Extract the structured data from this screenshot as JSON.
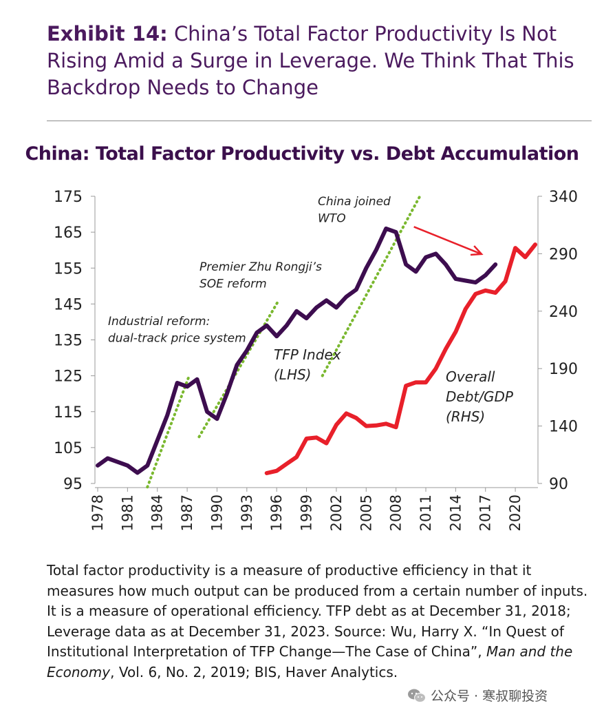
{
  "header": {
    "exhibit_label": "Exhibit 14:",
    "exhibit_title": "China’s Total Factor Productivity Is Not Rising Amid a Surge in Leverage. We Think That This Backdrop Needs to Change"
  },
  "chart_data": {
    "type": "line",
    "title": "China: Total Factor Productivity vs. Debt Accumulation",
    "x_ticks": [
      "1978",
      "1981",
      "1984",
      "1987",
      "1990",
      "1993",
      "1996",
      "1999",
      "2002",
      "2005",
      "2008",
      "2011",
      "2014",
      "2017",
      "2020"
    ],
    "y_left": {
      "min": 95,
      "max": 175,
      "ticks": [
        95,
        105,
        115,
        125,
        135,
        145,
        155,
        165,
        175
      ]
    },
    "y_right": {
      "min": 90,
      "max": 340,
      "ticks": [
        90,
        140,
        190,
        240,
        290,
        340
      ]
    },
    "series": [
      {
        "name": "TFP Index (LHS)",
        "axis": "left",
        "color": "#3d0d4f",
        "x": [
          1978,
          1979,
          1980,
          1981,
          1982,
          1983,
          1984,
          1985,
          1986,
          1987,
          1988,
          1989,
          1990,
          1991,
          1992,
          1993,
          1994,
          1995,
          1996,
          1997,
          1998,
          1999,
          2000,
          2001,
          2002,
          2003,
          2004,
          2005,
          2006,
          2007,
          2008,
          2009,
          2010,
          2011,
          2012,
          2013,
          2014,
          2015,
          2016,
          2017,
          2018
        ],
        "y": [
          100,
          102,
          101,
          100,
          98,
          100,
          107,
          114,
          123,
          122,
          124,
          115,
          113,
          120,
          128,
          132,
          137,
          139,
          136,
          139,
          143,
          141,
          144,
          146,
          144,
          147,
          149,
          155,
          160,
          166,
          165,
          156,
          154,
          158,
          159,
          156,
          152,
          151.5,
          151,
          153,
          156
        ]
      },
      {
        "name": "Overall Debt/GDP (RHS)",
        "axis": "right",
        "color": "#e8202a",
        "x": [
          1995,
          1996,
          1997,
          1998,
          1999,
          2000,
          2001,
          2002,
          2003,
          2004,
          2005,
          2006,
          2007,
          2008,
          2009,
          2010,
          2011,
          2012,
          2013,
          2014,
          2015,
          2016,
          2017,
          2018,
          2019,
          2020,
          2021,
          2022
        ],
        "y": [
          99,
          101,
          107,
          113,
          129,
          130,
          125,
          141,
          151,
          147,
          140,
          140.5,
          142,
          139,
          175,
          178,
          178,
          190,
          207,
          222,
          242,
          255,
          258,
          256,
          266,
          295,
          287,
          298
        ]
      }
    ],
    "trend_lines": [
      {
        "x": [
          1983,
          1987.2
        ],
        "y": [
          94,
          125
        ]
      },
      {
        "x": [
          1988.2,
          1996.2
        ],
        "y": [
          108,
          146
        ]
      },
      {
        "x": [
          2000.6,
          2010.4
        ],
        "y": [
          125,
          175
        ]
      }
    ],
    "annotations": [
      {
        "lines": [
          "Industrial reform:",
          "dual-track price system"
        ]
      },
      {
        "lines": [
          "Premier Zhu Rongji’s",
          "SOE reform"
        ]
      },
      {
        "lines": [
          "China joined",
          "WTO"
        ]
      },
      {
        "lines": [
          "TFP Index",
          "(LHS)"
        ]
      },
      {
        "lines": [
          "Overall",
          "Debt/GDP",
          "(RHS)"
        ]
      }
    ],
    "arrow": {
      "color": "#e8202a",
      "from": [
        2009.8,
        166.5
      ],
      "to": [
        2016.6,
        158.9
      ]
    },
    "trend_color": "#7ab82f"
  },
  "notes": {
    "part1": "Total factor productivity is a measure of productive efficiency in that it measures how much output can be produced from a certain number of inputs. It is a measure of operational efficiency. TFP debt as at December 31, 2018; Leverage data as at December 31, 2023. Source: Wu, Harry X. “In Quest of Institutional Interpretation of TFP Change—The Case of China”, ",
    "journal": "Man and the Economy",
    "part2": ", Vol. 6, No. 2, 2019; BIS, Haver Analytics."
  },
  "watermark": {
    "text": "公众号 · 寒叔聊投资"
  }
}
